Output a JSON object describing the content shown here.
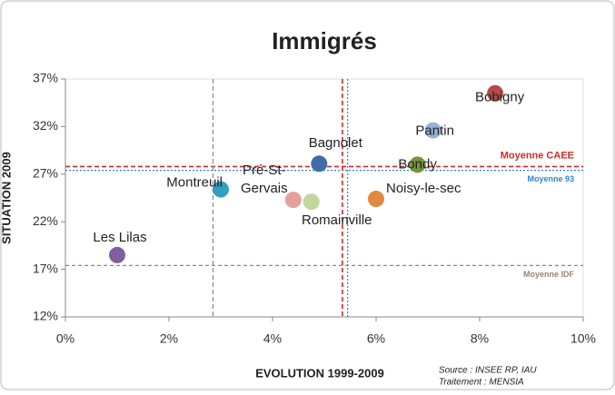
{
  "chart_data": {
    "type": "scatter",
    "title": "Immigrés",
    "x_label": "EVOLUTION 1999-2009",
    "y_label": "SITUATION 2009",
    "source": [
      "Source : INSEE RP, IAU",
      "Traitement : MENSIA"
    ],
    "xlim": [
      0,
      10
    ],
    "xticks": [
      {
        "value": 0,
        "label": "0%"
      },
      {
        "value": 2,
        "label": "2%"
      },
      {
        "value": 4,
        "label": "4%"
      },
      {
        "value": 6,
        "label": "6%"
      },
      {
        "value": 8,
        "label": "8%"
      },
      {
        "value": 10,
        "label": "10%"
      }
    ],
    "ylim": [
      12,
      37
    ],
    "yticks": [
      {
        "value": 12,
        "label": "12%"
      },
      {
        "value": 17,
        "label": "17%"
      },
      {
        "value": 22,
        "label": "22%"
      },
      {
        "value": 27,
        "label": "27%"
      },
      {
        "value": 32,
        "label": "32%"
      },
      {
        "value": 37,
        "label": "37%"
      }
    ],
    "points": [
      {
        "name": "Bobigny",
        "color": "#b84a48",
        "x": 8.3,
        "y": 35.5
      },
      {
        "name": "Pantin",
        "color": "#95b3d7",
        "x": 7.1,
        "y": 31.6
      },
      {
        "name": "Bagnolet",
        "color": "#3f6ea6",
        "x": 4.9,
        "y": 28.1
      },
      {
        "name": "Bondy",
        "color": "#77933c",
        "x": 6.8,
        "y": 28.0
      },
      {
        "name": "Montreuil",
        "color": "#31a0c0",
        "x": 3.0,
        "y": 25.4
      },
      {
        "name": "Pré-St-Gervais",
        "color": "#e6a09c",
        "x": 4.4,
        "y": 24.3
      },
      {
        "name": "Romainville",
        "color": "#c3d69b",
        "x": 4.75,
        "y": 24.1
      },
      {
        "name": "Noisy-le-sec",
        "color": "#e3883e",
        "x": 6.0,
        "y": 24.4
      },
      {
        "name": "Les Lilas",
        "color": "#7f5f9f",
        "x": 1.0,
        "y": 18.5
      }
    ],
    "hlines": [
      {
        "label": "Moyenne CAEE",
        "value": 27.8,
        "color": "#d62828"
      },
      {
        "label": "Moyenne 93",
        "value": 27.4,
        "color": "#2e86c8"
      },
      {
        "label": "Moyenne IDF",
        "value": 17.4,
        "color": "#9c8470"
      }
    ],
    "vlines": [
      {
        "value": 2.85,
        "color": "#888888"
      },
      {
        "value": 5.35,
        "color": "#d62828"
      },
      {
        "value": 5.45,
        "color": "#2e86c8"
      }
    ]
  }
}
